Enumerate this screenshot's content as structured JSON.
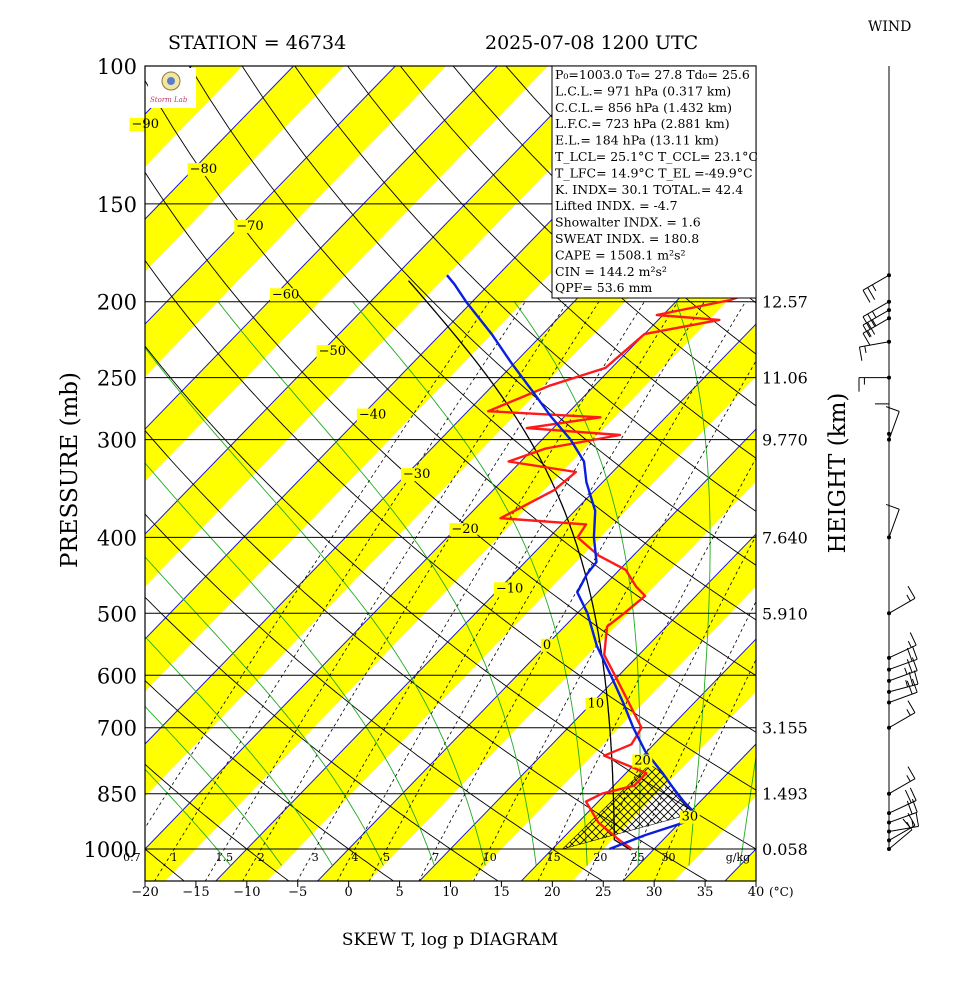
{
  "header": {
    "station": "STATION = 46734",
    "datetime": "2025-07-08 1200 UTC",
    "wind_label": "WIND"
  },
  "footer": {
    "title": "SKEW T, log p DIAGRAM"
  },
  "colors": {
    "temperature": "#ff1a1a",
    "dewpoint": "#0a1ee0",
    "isotherm_band": "#ffff00",
    "isotherm": "#1a1acc",
    "dry_adiabat": "#000000",
    "moist_adiabat": "#22aa22",
    "mixing_ratio": "#000000",
    "parcel": "#000000"
  },
  "info_box": [
    "P₀=1003.0 T₀= 27.8 Td₀= 25.6",
    "L.C.L.= 971 hPa (0.317 km)",
    "C.C.L.= 856 hPa (1.432 km)",
    "L.F.C.= 723 hPa (2.881 km)",
    "E.L.= 184 hPa (13.11 km)",
    "T_LCL= 25.1°C T_CCL= 23.1°C",
    "T_LFC= 14.9°C T_EL =-49.9°C",
    "K. INDX= 30.1 TOTAL.= 42.4",
    "Lifted INDX. = -4.7",
    "Showalter INDX. = 1.6",
    "SWEAT INDX. = 180.8",
    "CAPE = 1508.1 m²s²",
    "CIN = 144.2 m²s²",
    "QPF= 53.6 mm"
  ],
  "chart_data": {
    "type": "line",
    "xlabel": "(°C)",
    "ylabel": "PRESSURE (mb)",
    "y2label": "HEIGHT (km)",
    "xlim": [
      -20,
      40
    ],
    "ylim": [
      1000,
      100
    ],
    "y_scale": "log",
    "x_ticks": [
      "−20",
      "−15",
      "−10",
      "−5",
      "0",
      "5",
      "10",
      "15",
      "20",
      "25",
      "30",
      "35",
      "40"
    ],
    "pressure_ticks": [
      {
        "p": 100,
        "label": "100"
      },
      {
        "p": 150,
        "label": "150"
      },
      {
        "p": 200,
        "label": "200"
      },
      {
        "p": 250,
        "label": "250"
      },
      {
        "p": 300,
        "label": "300"
      },
      {
        "p": 400,
        "label": "400"
      },
      {
        "p": 500,
        "label": "500"
      },
      {
        "p": 600,
        "label": "600"
      },
      {
        "p": 700,
        "label": "700"
      },
      {
        "p": 850,
        "label": "850"
      },
      {
        "p": 1000,
        "label": "1000"
      }
    ],
    "height_ticks": [
      {
        "p": 200,
        "label": "12.57"
      },
      {
        "p": 250,
        "label": "11.06"
      },
      {
        "p": 300,
        "label": "9.770"
      },
      {
        "p": 400,
        "label": "7.640"
      },
      {
        "p": 500,
        "label": "5.910"
      },
      {
        "p": 700,
        "label": "3.155"
      },
      {
        "p": 850,
        "label": "1.493"
      },
      {
        "p": 1000,
        "label": "0.058"
      }
    ],
    "isotherm_labels": [
      {
        "t": -90,
        "p": 120,
        "label": "−90"
      },
      {
        "t": -80,
        "p": 137,
        "label": "−80"
      },
      {
        "t": -70,
        "p": 162,
        "label": "−70"
      },
      {
        "t": -60,
        "p": 198,
        "label": "−60"
      },
      {
        "t": -50,
        "p": 234,
        "label": "−50"
      },
      {
        "t": -40,
        "p": 282,
        "label": "−40"
      },
      {
        "t": -30,
        "p": 336,
        "label": "−30"
      },
      {
        "t": -20,
        "p": 395,
        "label": "−20"
      },
      {
        "t": -10,
        "p": 470,
        "label": "−10"
      },
      {
        "t": 0,
        "p": 555,
        "label": "0"
      },
      {
        "t": 10,
        "p": 660,
        "label": "10"
      },
      {
        "t": 20,
        "p": 780,
        "label": "20"
      },
      {
        "t": 30,
        "p": 920,
        "label": "30"
      }
    ],
    "mixing_ratio_labels": [
      "0.7",
      "1",
      "1.5",
      "2",
      "3",
      "4",
      "5",
      "7",
      "10",
      "15",
      "20",
      "25",
      "30",
      "g/kg"
    ],
    "mixing_ratio_values": [
      0.7,
      1,
      1.5,
      2,
      3,
      4,
      5,
      7,
      10,
      15,
      20,
      25,
      30
    ],
    "series": [
      {
        "key": "temperature",
        "points": [
          {
            "p": 1000,
            "t": 27.8
          },
          {
            "p": 975,
            "t": 25.8
          },
          {
            "p": 925,
            "t": 22.0
          },
          {
            "p": 870,
            "t": 18.8
          },
          {
            "p": 850,
            "t": 19.6
          },
          {
            "p": 830,
            "t": 22.0
          },
          {
            "p": 800,
            "t": 22.0
          },
          {
            "p": 760,
            "t": 16.2
          },
          {
            "p": 735,
            "t": 17.8
          },
          {
            "p": 700,
            "t": 17.2
          },
          {
            "p": 600,
            "t": 9.6
          },
          {
            "p": 565,
            "t": 6.6
          },
          {
            "p": 520,
            "t": 4.2
          },
          {
            "p": 500,
            "t": 4.6
          },
          {
            "p": 475,
            "t": 5.0
          },
          {
            "p": 462,
            "t": 3.2
          },
          {
            "p": 440,
            "t": 0.6
          },
          {
            "p": 422,
            "t": -3.4
          },
          {
            "p": 400,
            "t": -7.2
          },
          {
            "p": 385,
            "t": -7.6
          },
          {
            "p": 378,
            "t": -16.6
          },
          {
            "p": 348,
            "t": -14.0
          },
          {
            "p": 330,
            "t": -13.6
          },
          {
            "p": 320,
            "t": -21.2
          },
          {
            "p": 308,
            "t": -18.8
          },
          {
            "p": 296,
            "t": -12.8
          },
          {
            "p": 290,
            "t": -22.6
          },
          {
            "p": 281,
            "t": -16.4
          },
          {
            "p": 276,
            "t": -28.0
          },
          {
            "p": 256,
            "t": -24.4
          },
          {
            "p": 243,
            "t": -20.6
          },
          {
            "p": 220,
            "t": -20.0
          },
          {
            "p": 211,
            "t": -14.0
          },
          {
            "p": 208,
            "t": -20.6
          },
          {
            "p": 199,
            "t": -14.8
          },
          {
            "p": 190,
            "t": -12.0
          },
          {
            "p": 185,
            "t": -13.2
          }
        ]
      },
      {
        "key": "dewpoint",
        "points": [
          {
            "p": 1000,
            "t": 25.6
          },
          {
            "p": 960,
            "t": 27.8
          },
          {
            "p": 925,
            "t": 30.4
          },
          {
            "p": 900,
            "t": 30.6
          },
          {
            "p": 870,
            "t": 28.4
          },
          {
            "p": 850,
            "t": 27.0
          },
          {
            "p": 800,
            "t": 23.6
          },
          {
            "p": 750,
            "t": 19.8
          },
          {
            "p": 700,
            "t": 16.4
          },
          {
            "p": 650,
            "t": 13.0
          },
          {
            "p": 600,
            "t": 9.2
          },
          {
            "p": 550,
            "t": 5.0
          },
          {
            "p": 500,
            "t": 1.0
          },
          {
            "p": 470,
            "t": -2.0
          },
          {
            "p": 445,
            "t": -2.8
          },
          {
            "p": 430,
            "t": -3.0
          },
          {
            "p": 400,
            "t": -5.6
          },
          {
            "p": 370,
            "t": -8.0
          },
          {
            "p": 340,
            "t": -11.6
          },
          {
            "p": 320,
            "t": -13.8
          },
          {
            "p": 300,
            "t": -17.2
          },
          {
            "p": 280,
            "t": -21.4
          },
          {
            "p": 260,
            "t": -25.6
          },
          {
            "p": 240,
            "t": -30.2
          },
          {
            "p": 220,
            "t": -35.0
          },
          {
            "p": 200,
            "t": -40.6
          },
          {
            "p": 190,
            "t": -43.4
          },
          {
            "p": 185,
            "t": -45.0
          }
        ]
      }
    ],
    "wind_barbs": [
      {
        "p": 1000,
        "speed": 10,
        "dir": 230
      },
      {
        "p": 975,
        "speed": 15,
        "dir": 240
      },
      {
        "p": 950,
        "speed": 15,
        "dir": 260
      },
      {
        "p": 925,
        "speed": 20,
        "dir": 250
      },
      {
        "p": 900,
        "speed": 20,
        "dir": 245
      },
      {
        "p": 850,
        "speed": 15,
        "dir": 240
      },
      {
        "p": 700,
        "speed": 15,
        "dir": 240
      },
      {
        "p": 650,
        "speed": 20,
        "dir": 250
      },
      {
        "p": 630,
        "speed": 25,
        "dir": 255
      },
      {
        "p": 610,
        "speed": 25,
        "dir": 250
      },
      {
        "p": 590,
        "speed": 20,
        "dir": 250
      },
      {
        "p": 570,
        "speed": 15,
        "dir": 245
      },
      {
        "p": 500,
        "speed": 15,
        "dir": 240
      },
      {
        "p": 400,
        "speed": 10,
        "dir": 200
      },
      {
        "p": 300,
        "speed": 10,
        "dir": 200
      },
      {
        "p": 295,
        "speed": 10,
        "dir": 180
      },
      {
        "p": 250,
        "speed": 15,
        "dir": 90
      },
      {
        "p": 225,
        "speed": 15,
        "dir": 80
      },
      {
        "p": 210,
        "speed": 15,
        "dir": 60
      },
      {
        "p": 205,
        "speed": 25,
        "dir": 60
      },
      {
        "p": 200,
        "speed": 25,
        "dir": 60
      },
      {
        "p": 185,
        "speed": 25,
        "dir": 60
      }
    ]
  }
}
